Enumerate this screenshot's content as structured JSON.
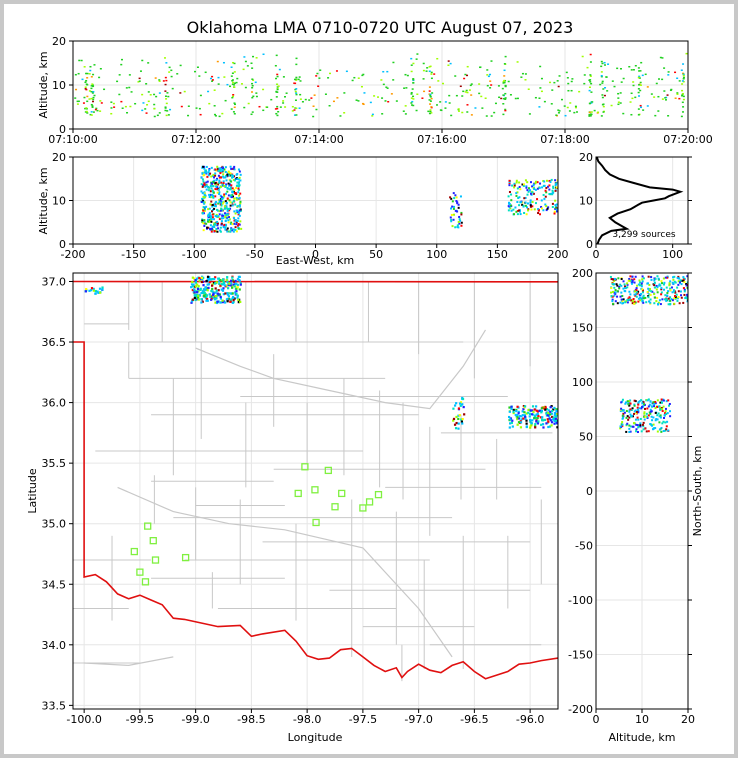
{
  "chart_data": [
    {
      "id": "time-height",
      "type": "scatter",
      "title": "Oklahoma LMA 0710-0720 UTC August 07, 2023",
      "xlabel": "",
      "ylabel": "Altitude, km",
      "xlim": [
        "07:10:00",
        "07:20:00"
      ],
      "ylim": [
        0,
        20
      ],
      "xticks": [
        "07:10:00",
        "07:12:00",
        "07:14:00",
        "07:16:00",
        "07:18:00",
        "07:20:00"
      ],
      "yticks": [
        "0",
        "10",
        "20"
      ],
      "grid": true,
      "altitude_band_km": [
        3,
        18
      ],
      "dense_minutes": [
        0.2,
        0.3,
        1.5,
        2.6,
        2.9,
        3.3,
        3.6,
        5.5,
        5.8,
        7.0,
        8.4,
        8.6,
        9.2,
        9.9
      ]
    },
    {
      "id": "east-west-height",
      "type": "heatmap",
      "xlabel": "East-West, km",
      "ylabel": "Altitude, km",
      "xlim": [
        -200,
        200
      ],
      "ylim": [
        0,
        20
      ],
      "xticks": [
        "-200",
        "-150",
        "-100",
        "-50",
        "0",
        "50",
        "100",
        "150",
        "200"
      ],
      "yticks": [
        "0",
        "10",
        "20"
      ],
      "grid": true,
      "clusters": [
        {
          "x_km": [
            -95,
            -62
          ],
          "alt_km": [
            3,
            18
          ]
        },
        {
          "x_km": [
            110,
            120
          ],
          "alt_km": [
            4,
            12
          ]
        },
        {
          "x_km": [
            158,
            200
          ],
          "alt_km": [
            7,
            15
          ]
        }
      ]
    },
    {
      "id": "altitude-histogram",
      "type": "line",
      "xlim": [
        0,
        120
      ],
      "ylim": [
        0,
        20
      ],
      "xticks": [
        "0",
        "100"
      ],
      "yticks": [
        "0",
        "10",
        "20"
      ],
      "annotation": "3,299 sources",
      "points": [
        [
          2,
          0
        ],
        [
          4,
          1
        ],
        [
          8,
          2
        ],
        [
          20,
          3
        ],
        [
          40,
          3.5
        ],
        [
          35,
          4
        ],
        [
          25,
          5
        ],
        [
          18,
          6
        ],
        [
          28,
          7
        ],
        [
          45,
          8
        ],
        [
          55,
          9
        ],
        [
          60,
          9.5
        ],
        [
          75,
          10
        ],
        [
          90,
          10.5
        ],
        [
          95,
          11
        ],
        [
          110,
          12
        ],
        [
          100,
          12.5
        ],
        [
          70,
          13
        ],
        [
          50,
          14
        ],
        [
          30,
          15
        ],
        [
          18,
          16
        ],
        [
          12,
          17
        ],
        [
          8,
          18
        ],
        [
          3,
          19
        ],
        [
          1,
          20
        ]
      ]
    },
    {
      "id": "plan-view",
      "type": "scatter",
      "xlabel": "Longitude",
      "ylabel": "Latitude",
      "xlim": [
        -100.1,
        -95.75
      ],
      "ylim": [
        33.47,
        37.07
      ],
      "xticks": [
        "-100.0",
        "-99.5",
        "-99.0",
        "-98.5",
        "-98.0",
        "-97.5",
        "-97.0",
        "-96.5",
        "-96.0"
      ],
      "yticks": [
        "33.5",
        "34.0",
        "34.5",
        "35.0",
        "35.5",
        "36.0",
        "36.5",
        "37.0"
      ],
      "stations": [
        [
          -98.02,
          35.47
        ],
        [
          -97.81,
          35.44
        ],
        [
          -98.08,
          35.25
        ],
        [
          -97.93,
          35.28
        ],
        [
          -97.69,
          35.25
        ],
        [
          -97.36,
          35.24
        ],
        [
          -97.44,
          35.18
        ],
        [
          -97.75,
          35.14
        ],
        [
          -97.5,
          35.13
        ],
        [
          -97.92,
          35.01
        ],
        [
          -99.43,
          34.98
        ],
        [
          -99.38,
          34.86
        ],
        [
          -99.55,
          34.77
        ],
        [
          -99.36,
          34.7
        ],
        [
          -99.09,
          34.72
        ],
        [
          -99.5,
          34.6
        ],
        [
          -99.45,
          34.52
        ]
      ],
      "clusters": [
        {
          "lon": [
            -99.05,
            -98.6
          ],
          "lat": [
            36.83,
            37.05
          ]
        },
        {
          "lon": [
            -100.0,
            -99.83
          ],
          "lat": [
            36.9,
            36.96
          ]
        },
        {
          "lon": [
            -96.2,
            -95.75
          ],
          "lat": [
            35.8,
            35.98
          ]
        },
        {
          "lon": [
            -96.7,
            -96.6
          ],
          "lat": [
            35.78,
            36.05
          ]
        }
      ]
    },
    {
      "id": "north-south-height",
      "type": "heatmap",
      "xlabel": "Altitude, km",
      "ylabel": "North-South, km",
      "xlim": [
        0,
        20
      ],
      "ylim": [
        -200,
        200
      ],
      "xticks": [
        "0",
        "10",
        "20"
      ],
      "yticks": [
        "-200",
        "-150",
        "-100",
        "-50",
        "0",
        "50",
        "100",
        "150",
        "200"
      ],
      "clusters": [
        {
          "alt_km": [
            3,
            20
          ],
          "y_km": [
            172,
            198
          ]
        },
        {
          "alt_km": [
            5,
            16
          ],
          "y_km": [
            55,
            85
          ]
        }
      ]
    }
  ],
  "palette": [
    "#2020ff",
    "#00c0ff",
    "#00e0c0",
    "#20d020",
    "#a0ff00",
    "#ffff00",
    "#ff9900",
    "#ff0000",
    "#a00000",
    "#000000"
  ],
  "border_color": "#e01010",
  "county_color": "#c8c8c8",
  "station_color": "#80f040"
}
